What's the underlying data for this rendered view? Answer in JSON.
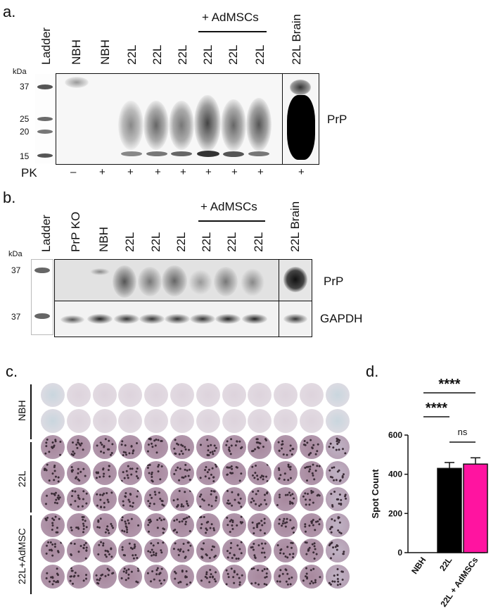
{
  "panel_a": {
    "label": "a.",
    "group_label": "+ AdMSCs",
    "lane_labels": [
      "Ladder",
      "NBH",
      "NBH",
      "22L",
      "22L",
      "22L",
      "22L",
      "22L",
      "22L",
      "22L Brain"
    ],
    "kda_label": "kDa",
    "markers": [
      "37",
      "25",
      "20",
      "15"
    ],
    "blot_label": "PrP",
    "pk_label": "PK",
    "pk_values": [
      "–",
      "+",
      "+",
      "+",
      "+",
      "+",
      "+",
      "+",
      "+"
    ]
  },
  "panel_b": {
    "label": "b.",
    "group_label": "+ AdMSCs",
    "lane_labels": [
      "Ladder",
      "PrP KO",
      "NBH",
      "22L",
      "22L",
      "22L",
      "22L",
      "22L",
      "22L",
      "22L Brain"
    ],
    "kda_label": "kDa",
    "markers": [
      "37",
      "37"
    ],
    "blot_labels": [
      "PrP",
      "GAPDH"
    ]
  },
  "panel_c": {
    "label": "c.",
    "row_labels": [
      "NBH",
      "22L",
      "22L+AdMSC"
    ],
    "colors": {
      "clear_well": "#c9d6de",
      "pale_well": "#ddd3dc",
      "spot_well": "#a8899e"
    }
  },
  "panel_d": {
    "label": "d.",
    "colors": {
      "bar_22l": "#000000",
      "bar_admsc": "#ff14a0"
    },
    "chart_data": {
      "type": "bar",
      "categories": [
        "NBH",
        "22L",
        "22L + AdMSCs"
      ],
      "values": [
        0,
        430,
        452
      ],
      "errors": [
        0,
        30,
        32
      ],
      "ylabel": "Spot Count",
      "ylim": [
        0,
        600
      ],
      "yticks": [
        0,
        200,
        400,
        600
      ],
      "significance": [
        {
          "pair": [
            "NBH",
            "22L + AdMSCs"
          ],
          "label": "****"
        },
        {
          "pair": [
            "NBH",
            "22L"
          ],
          "label": "****"
        },
        {
          "pair": [
            "22L",
            "22L + AdMSCs"
          ],
          "label": "ns"
        }
      ]
    }
  }
}
